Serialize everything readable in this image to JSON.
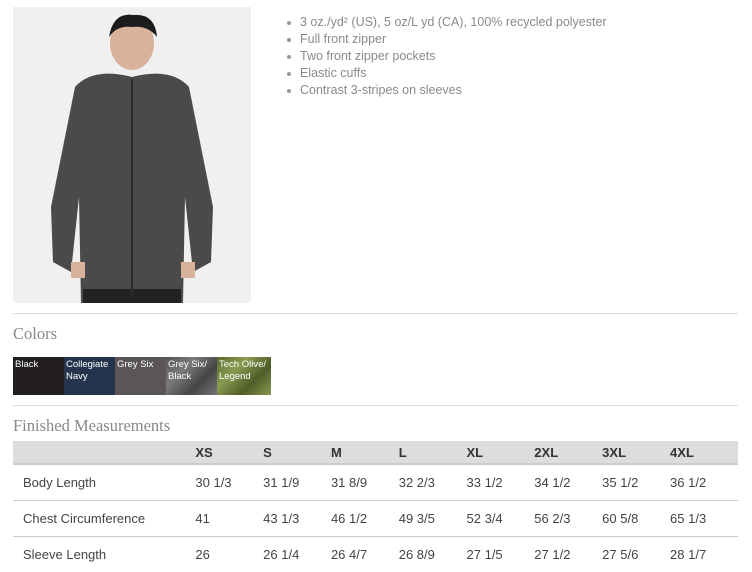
{
  "features": [
    "3 oz./yd² (US), 5 oz/L yd (CA), 100% recycled polyester",
    "Full front zipper",
    "Two front zipper pockets",
    "Elastic cuffs",
    "Contrast 3-stripes on sleeves"
  ],
  "colors_title": "Colors",
  "colors": [
    {
      "name": "Black",
      "hex": "#231f20"
    },
    {
      "name": "Collegiate Navy",
      "hex": "#24344d"
    },
    {
      "name": "Grey Six",
      "hex": "#5a5657"
    },
    {
      "name": "Grey Six/ Black",
      "hex": "#6a6a6a"
    },
    {
      "name": "Tech Olive/ Legend",
      "hex": "#6e7c3c"
    }
  ],
  "measurements_title": "Finished Measurements",
  "sizes": [
    "XS",
    "S",
    "M",
    "L",
    "XL",
    "2XL",
    "3XL",
    "4XL"
  ],
  "rows": [
    {
      "label": "Body Length",
      "values": [
        "30 1/3",
        "31 1/9",
        "31 8/9",
        "32 2/3",
        "33 1/2",
        "34 1/2",
        "35 1/2",
        "36 1/2"
      ]
    },
    {
      "label": "Chest Circumference",
      "values": [
        "41",
        "43 1/3",
        "46 1/2",
        "49 3/5",
        "52 3/4",
        "56 2/3",
        "60 5/8",
        "65 1/3"
      ]
    },
    {
      "label": "Sleeve Length",
      "values": [
        "26",
        "26 1/4",
        "26 4/7",
        "26 8/9",
        "27 1/5",
        "27 1/2",
        "27 5/6",
        "28 1/7"
      ]
    }
  ]
}
